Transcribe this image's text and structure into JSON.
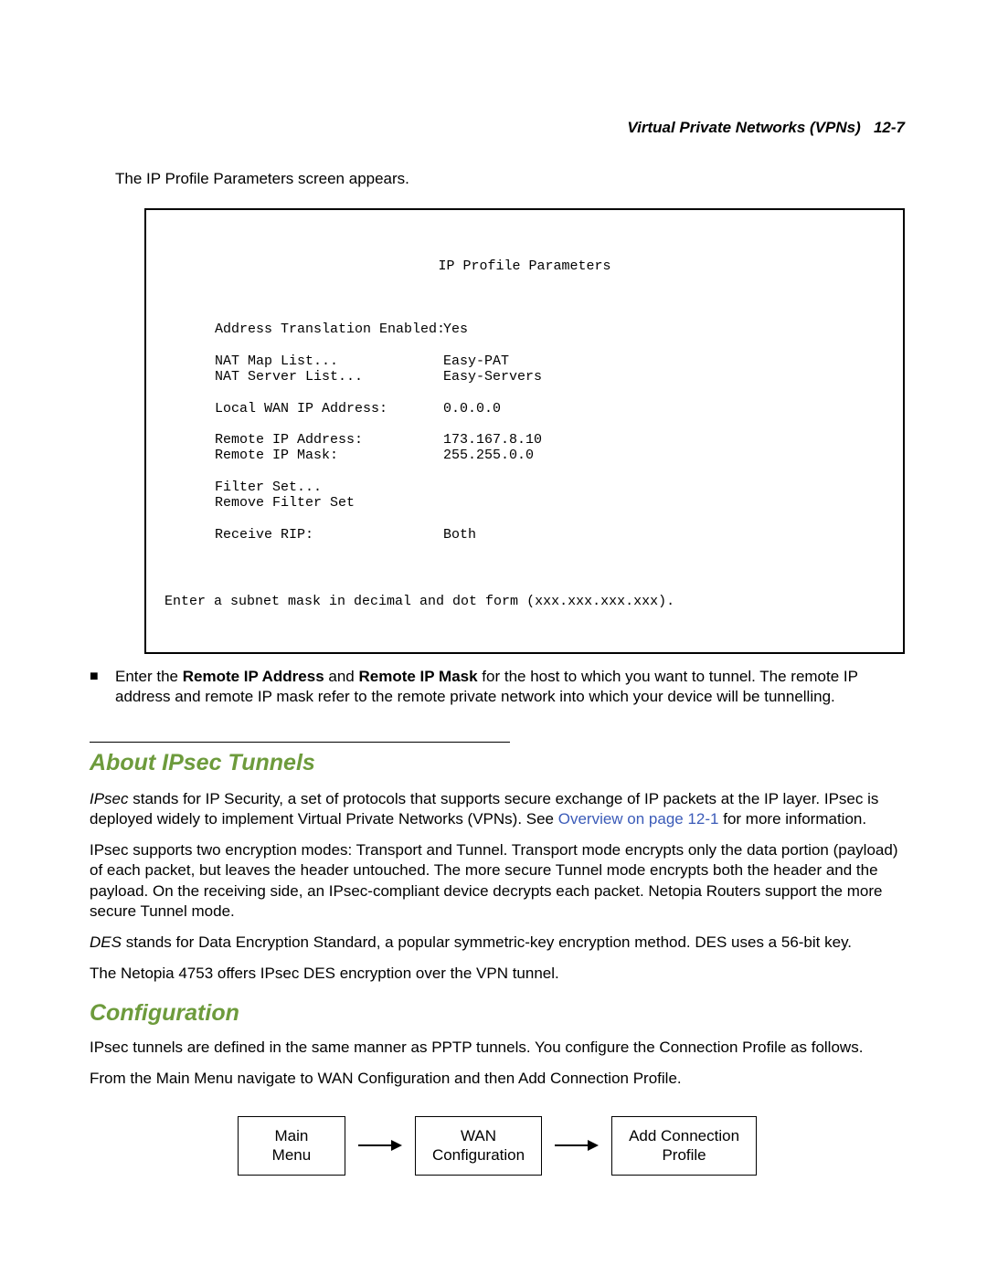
{
  "header": {
    "title": "Virtual Private Networks (VPNs)",
    "page_num": "12-7"
  },
  "intro": "The IP Profile Parameters screen appears.",
  "terminal": {
    "title": "IP Profile Parameters",
    "rows": [
      {
        "label": "Address Translation Enabled:",
        "value": "Yes",
        "blank_after": true
      },
      {
        "label": "NAT Map List...",
        "value": "Easy-PAT"
      },
      {
        "label": "NAT Server List...",
        "value": "Easy-Servers",
        "blank_after": true
      },
      {
        "label": "Local WAN IP Address:",
        "value": "0.0.0.0",
        "blank_after": true
      },
      {
        "label": "Remote IP Address:",
        "value": "173.167.8.10"
      },
      {
        "label": "Remote IP Mask:",
        "value": "255.255.0.0",
        "blank_after": true
      },
      {
        "label": "Filter Set...",
        "value": ""
      },
      {
        "label": "Remove Filter Set",
        "value": "",
        "blank_after": true
      },
      {
        "label": "Receive RIP:",
        "value": "Both"
      }
    ],
    "footer": "Enter a subnet mask in decimal and dot form (xxx.xxx.xxx.xxx)."
  },
  "bullet": {
    "pre": "Enter the ",
    "bold1": "Remote IP Address",
    "mid1": " and ",
    "bold2": "Remote IP Mask",
    "rest": " for the host to which you want to tunnel. The remote IP address and remote IP mask refer to the remote private network into which your device will be tunnelling."
  },
  "about": {
    "heading": "About IPsec Tunnels",
    "p1_pre_italic": "IPsec",
    "p1_rest1": " stands for IP Security, a set of protocols that supports secure exchange of IP packets at the IP layer. IPsec is deployed widely to implement Virtual Private Networks (VPNs). See ",
    "p1_link": "Overview on page 12-1",
    "p1_rest2": " for more information.",
    "p2": "IPsec supports two encryption modes: Transport and Tunnel. Transport mode encrypts only the data portion (payload) of each packet, but leaves the header untouched. The more secure Tunnel mode encrypts both the header and the payload. On the receiving side, an IPsec-compliant device decrypts each packet. Netopia Routers support the more secure Tunnel mode.",
    "p3_italic": "DES",
    "p3_rest": " stands for Data Encryption Standard, a popular symmetric-key encryption method. DES uses a 56-bit key.",
    "p4": "The Netopia 4753 offers IPsec DES encryption over the VPN tunnel."
  },
  "config": {
    "heading": "Configuration",
    "p1": "IPsec tunnels are defined in the same manner as PPTP tunnels. You configure the Connection Profile as follows.",
    "p2": "From the Main Menu navigate to WAN Configuration and then Add Connection Profile."
  },
  "flow": {
    "box1_l1": "Main",
    "box1_l2": "Menu",
    "box2_l1": "WAN",
    "box2_l2": "Configuration",
    "box3_l1": "Add Connection",
    "box3_l2": "Profile"
  },
  "colors": {
    "heading": "#6d9b3c",
    "link": "#3b5bb8",
    "text": "#000000",
    "border": "#000000"
  }
}
